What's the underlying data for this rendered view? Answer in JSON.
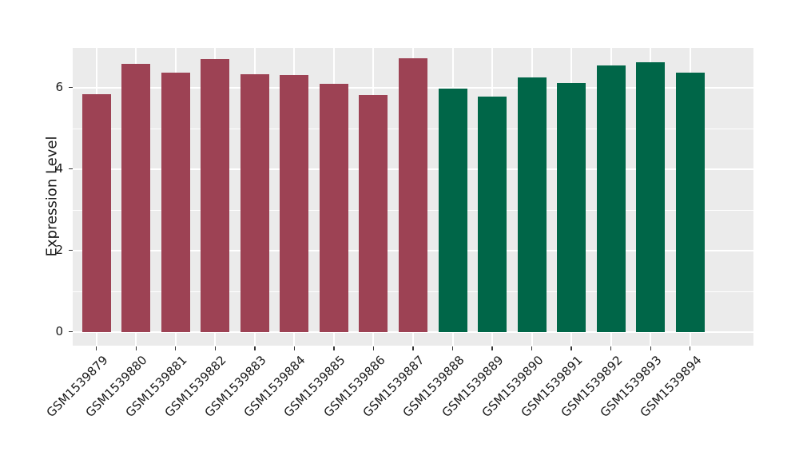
{
  "chart_data": {
    "type": "bar",
    "title": "",
    "xlabel": "",
    "ylabel": "Expression Level",
    "categories": [
      "GSM1539879",
      "GSM1539880",
      "GSM1539881",
      "GSM1539882",
      "GSM1539883",
      "GSM1539884",
      "GSM1539885",
      "GSM1539886",
      "GSM1539887",
      "GSM1539888",
      "GSM1539889",
      "GSM1539890",
      "GSM1539891",
      "GSM1539892",
      "GSM1539893",
      "GSM1539894"
    ],
    "values": [
      5.84,
      6.59,
      6.37,
      6.71,
      6.33,
      6.31,
      6.1,
      5.83,
      6.72,
      5.99,
      5.78,
      6.25,
      6.11,
      6.54,
      6.62,
      6.37
    ],
    "group_index": [
      0,
      0,
      0,
      0,
      0,
      0,
      0,
      0,
      0,
      1,
      1,
      1,
      1,
      1,
      1,
      1
    ],
    "group_colors": [
      "#9D4254",
      "#006648"
    ],
    "yticks": [
      0,
      2,
      4,
      6
    ],
    "ytick_labels": [
      "0",
      "2",
      "4",
      "6"
    ],
    "y_minor_ticks": [
      1,
      3,
      5
    ],
    "ylim": [
      0,
      6.98
    ],
    "grid": "on",
    "legend": "none",
    "panel_background": "#EBEBEB",
    "grid_color": "#FFFFFF"
  }
}
